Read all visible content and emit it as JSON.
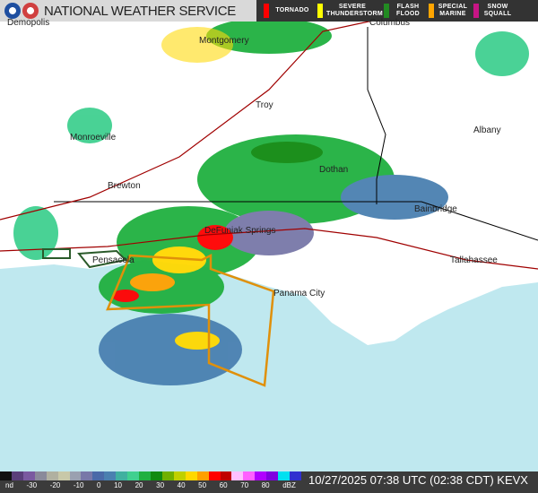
{
  "header": {
    "title": "NATIONAL WEATHER SERVICE",
    "logos": [
      "noaa-logo",
      "nws-logo"
    ]
  },
  "warnings": [
    {
      "label": "TORNADO",
      "color": "#ff0000"
    },
    {
      "label": "SEVERE THUNDERSTORM",
      "color": "#ffff00"
    },
    {
      "label": "FLASH FLOOD",
      "color": "#228b22"
    },
    {
      "label": "SPECIAL MARINE",
      "color": "#ffa500"
    },
    {
      "label": "SNOW SQUALL",
      "color": "#c71585"
    }
  ],
  "cities": [
    "Demopolis",
    "Montgomery",
    "Columbus",
    "Troy",
    "Monroeville",
    "Albany",
    "Dothan",
    "Brewton",
    "Bainbridge",
    "DeFuniak Springs",
    "Pensacola",
    "Tallahassee",
    "Panama City"
  ],
  "legend": {
    "ticks": [
      "nd",
      "-30",
      "-20",
      "-10",
      "0",
      "10",
      "20",
      "30",
      "40",
      "50",
      "60",
      "70",
      "80",
      "dBZ"
    ],
    "colors": [
      "#111111",
      "#5a3f7a",
      "#7a5aa0",
      "#8a8a9a",
      "#b0b0a0",
      "#c8c8a8",
      "#9aa0b0",
      "#7878a8",
      "#4a6aa8",
      "#4a80b0",
      "#40b0a0",
      "#40d090",
      "#20b040",
      "#108a10",
      "#70b000",
      "#c0d000",
      "#ffd800",
      "#ffa000",
      "#ff0000",
      "#c00000",
      "#ffc0ff",
      "#ff60ff",
      "#b000ff",
      "#8000e0",
      "#00e0f0",
      "#3030d0"
    ]
  },
  "timestamp": "10/27/2025 07:38 UTC (02:38 CDT) KEVX"
}
